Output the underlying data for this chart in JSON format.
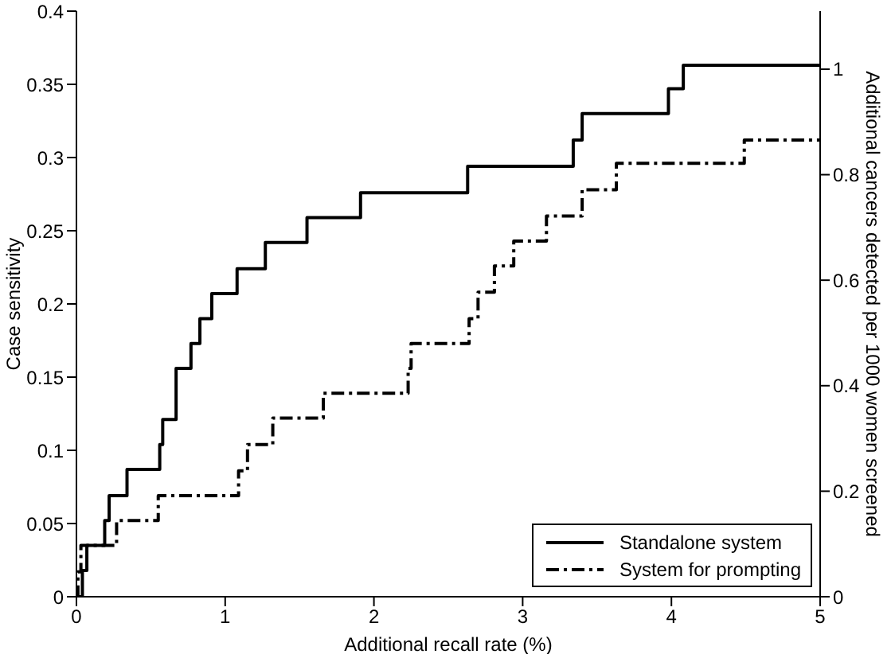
{
  "chart_data": {
    "type": "step",
    "xlabel": "Additional recall rate (%)",
    "ylabel": "Case sensitivity",
    "y2label": "Additional cancers detected per 1000 women screened",
    "xlim": [
      0,
      5
    ],
    "xticks": [
      0,
      1,
      2,
      3,
      4,
      5
    ],
    "ylim": [
      0,
      0.4
    ],
    "yticks": [
      0,
      0.05,
      0.1,
      0.15,
      0.2,
      0.25,
      0.3,
      0.35,
      0.4
    ],
    "y2lim": [
      0,
      1.11
    ],
    "y2ticks": [
      0,
      0.2,
      0.4,
      0.6,
      0.8,
      1
    ],
    "legend": "bottom right",
    "marker": "none",
    "series": [
      {
        "name": "Standalone system",
        "color": "#000000",
        "line_style": "solid",
        "x": [
          0,
          0.04,
          0.07,
          0.19,
          0.22,
          0.34,
          0.56,
          0.58,
          0.67,
          0.77,
          0.83,
          0.91,
          1.08,
          1.27,
          1.55,
          1.91,
          2.63,
          3.34,
          3.4,
          3.98,
          4.08,
          5
        ],
        "values": [
          0,
          0.018,
          0.035,
          0.052,
          0.069,
          0.087,
          0.104,
          0.121,
          0.156,
          0.173,
          0.19,
          0.207,
          0.224,
          0.242,
          0.259,
          0.276,
          0.294,
          0.312,
          0.33,
          0.347,
          0.363,
          0.363
        ]
      },
      {
        "name": "System for prompting",
        "color": "#000000",
        "line_style": "dashed",
        "x": [
          0,
          0.01,
          0.03,
          0.27,
          0.55,
          1.09,
          1.15,
          1.32,
          1.66,
          2.23,
          2.25,
          2.64,
          2.7,
          2.81,
          2.94,
          3.16,
          3.4,
          3.63,
          4.49,
          5
        ],
        "values": [
          0,
          0.017,
          0.035,
          0.052,
          0.069,
          0.086,
          0.104,
          0.122,
          0.139,
          0.156,
          0.173,
          0.19,
          0.208,
          0.226,
          0.243,
          0.26,
          0.278,
          0.296,
          0.312,
          0.312
        ]
      }
    ]
  }
}
